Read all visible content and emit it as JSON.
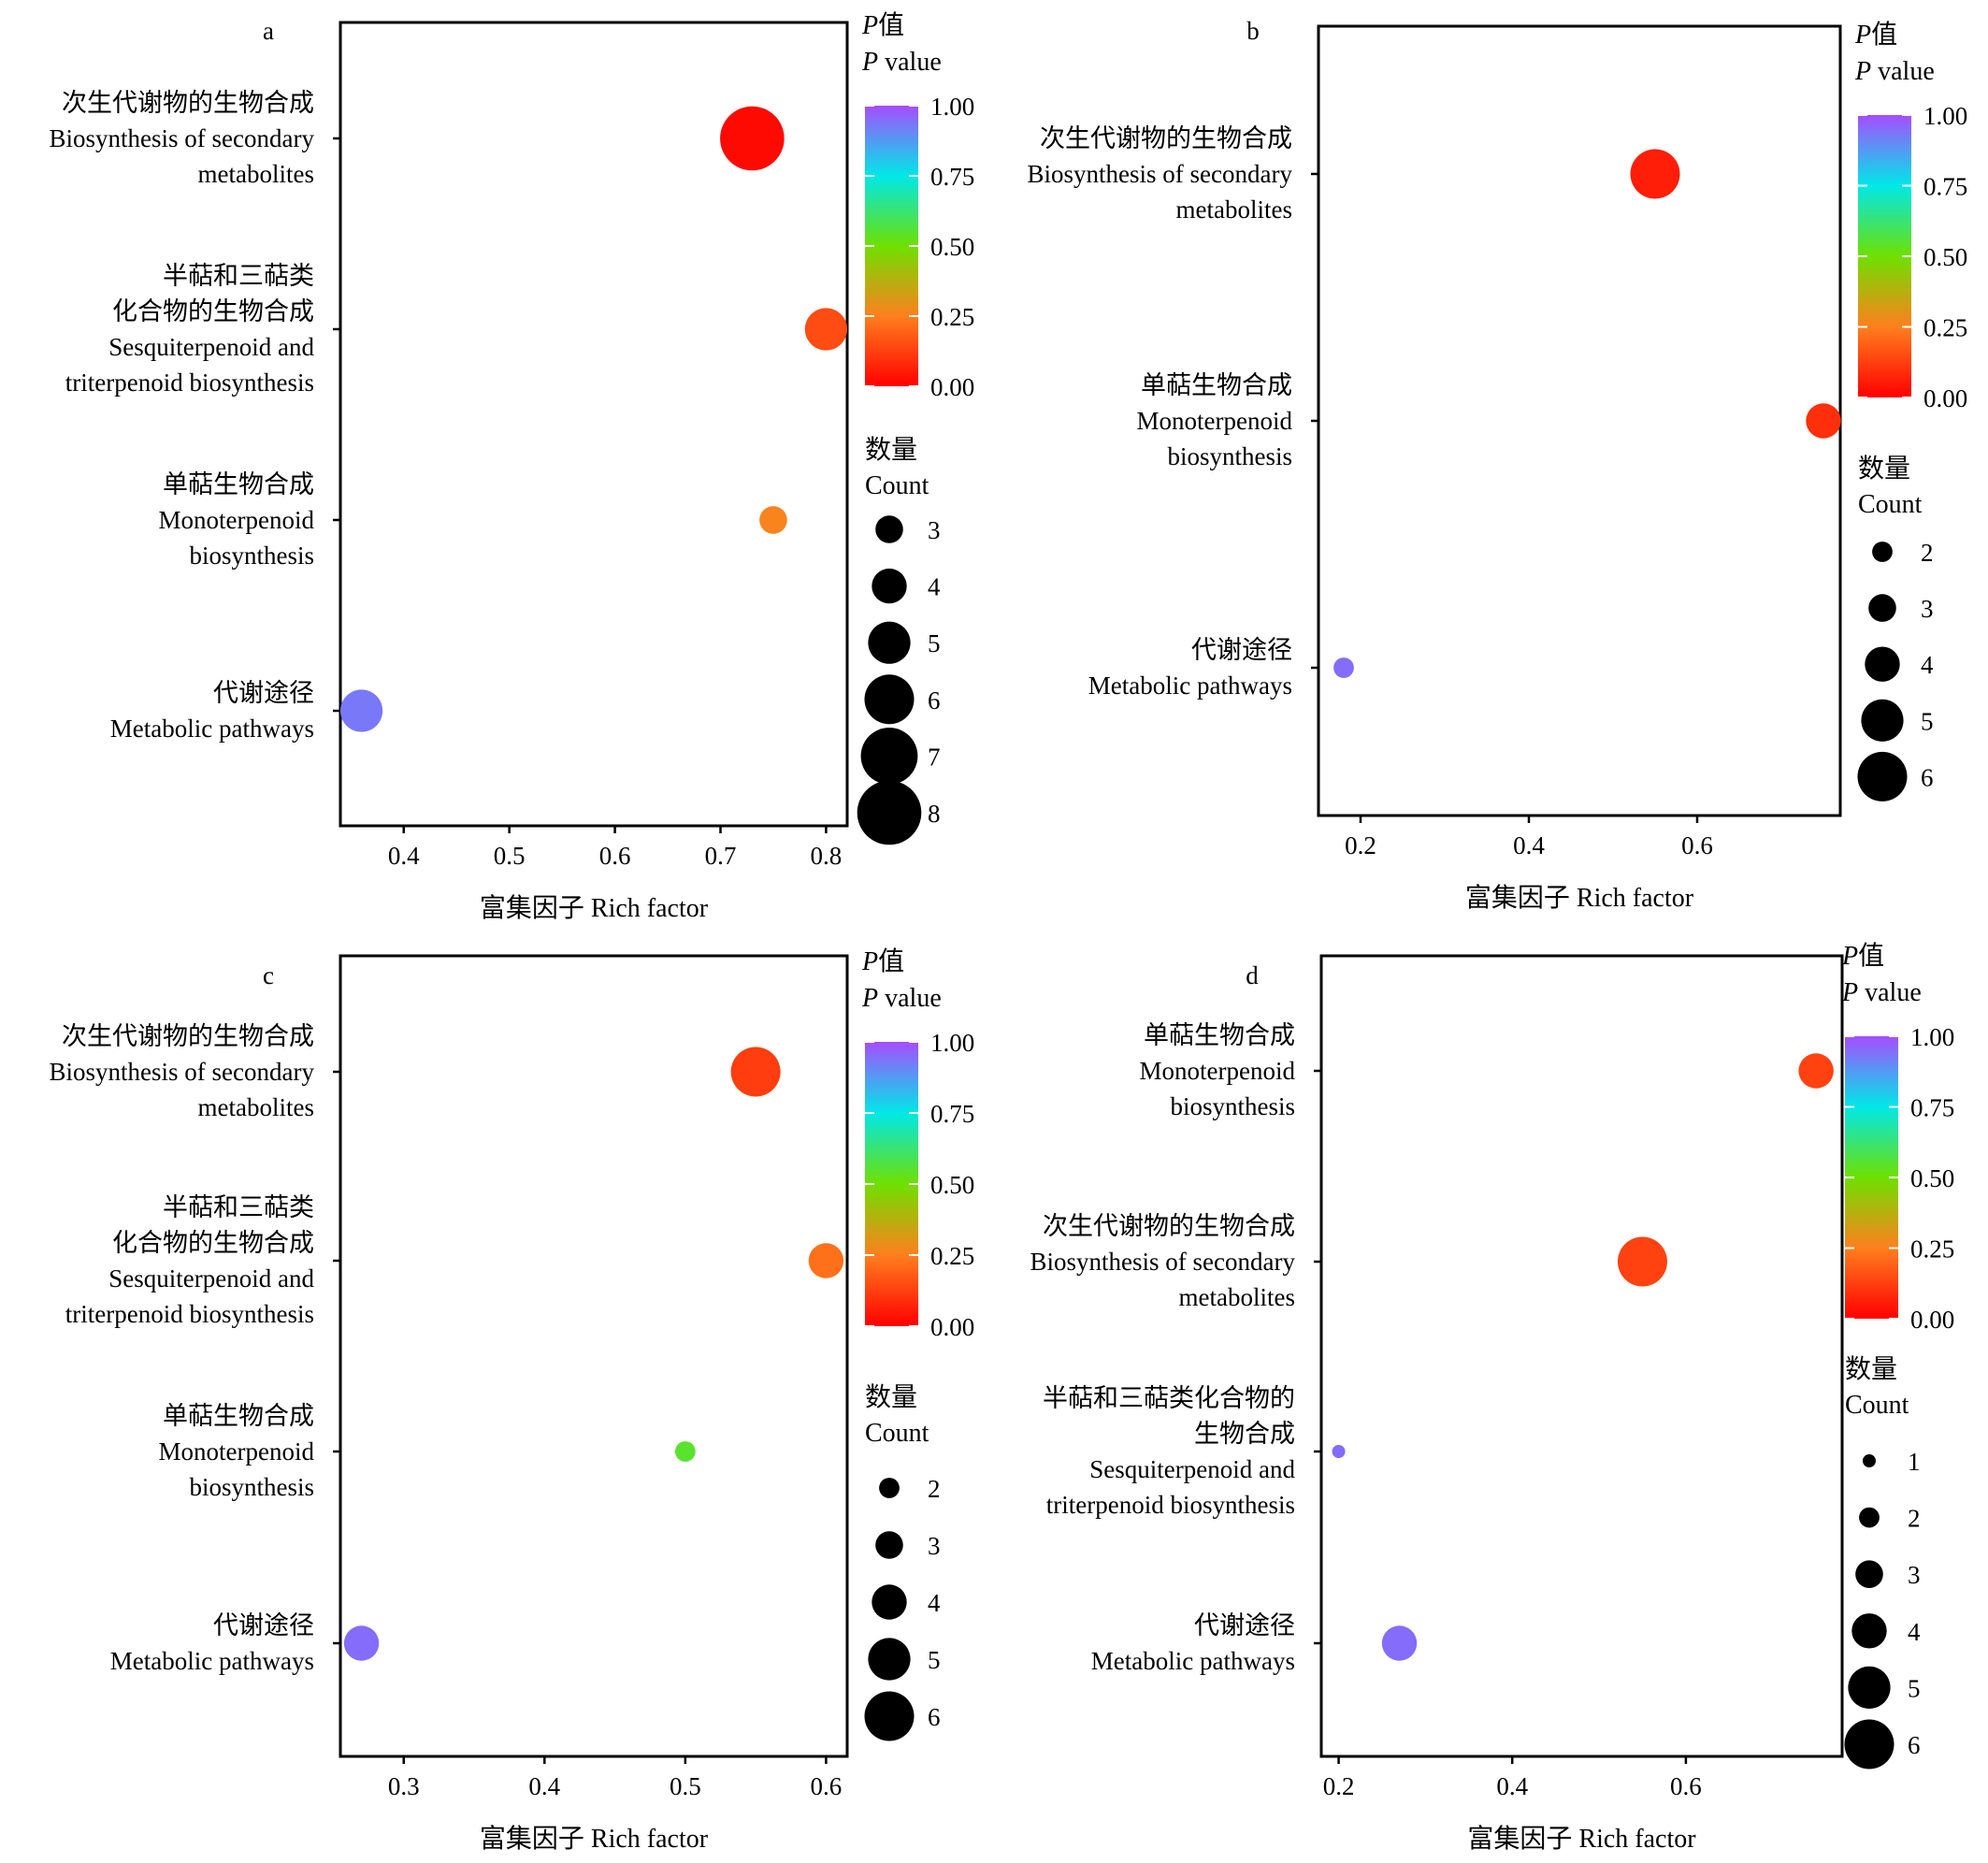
{
  "chart_data": [
    {
      "panel": "a",
      "type": "scatter",
      "xlabel": "富集因子 Rich factor",
      "xlim": [
        0.34,
        0.82
      ],
      "xticks": [
        "0.4",
        "0.5",
        "0.6",
        "0.7",
        "0.8"
      ],
      "yticks": [
        [
          "次生代谢物的生物合成",
          "Biosynthesis of secondary",
          "metabolites"
        ],
        [
          "半萜和三萜类",
          "化合物的生物合成",
          "Sesquiterpenoid and",
          "triterpenoid biosynthesis"
        ],
        [
          "单萜生物合成",
          "Monoterpenoid",
          "biosynthesis"
        ],
        [
          "代谢途径",
          "Metabolic pathways"
        ]
      ],
      "points": [
        {
          "row": 0,
          "x": 0.73,
          "count": 8,
          "p": 0.02
        },
        {
          "row": 1,
          "x": 0.8,
          "count": 5,
          "p": 0.15
        },
        {
          "row": 2,
          "x": 0.75,
          "count": 3,
          "p": 0.26
        },
        {
          "row": 3,
          "x": 0.36,
          "count": 5,
          "p": 0.93
        }
      ],
      "color_legend": {
        "title_cn": "P值",
        "title_en": "P value",
        "ticks": [
          "1.00",
          "0.75",
          "0.50",
          "0.25",
          "0.00"
        ]
      },
      "size_legend": {
        "title_cn": "数量",
        "title_en": "Count",
        "values": [
          "3",
          "4",
          "5",
          "6",
          "7",
          "8"
        ]
      }
    },
    {
      "panel": "b",
      "type": "scatter",
      "xlabel": "富集因子 Rich factor",
      "xlim": [
        0.15,
        0.77
      ],
      "xticks": [
        "0.2",
        "0.4",
        "0.6"
      ],
      "yticks": [
        [
          "次生代谢物的生物合成",
          "Biosynthesis of secondary",
          "metabolites"
        ],
        [
          "单萜生物合成",
          "Monoterpenoid",
          "biosynthesis"
        ],
        [
          "代谢途径",
          "Metabolic pathways"
        ]
      ],
      "points": [
        {
          "row": 0,
          "x": 0.55,
          "count": 6,
          "p": 0.06
        },
        {
          "row": 1,
          "x": 0.75,
          "count": 4,
          "p": 0.09
        },
        {
          "row": 2,
          "x": 0.18,
          "count": 2,
          "p": 0.95
        }
      ],
      "color_legend": {
        "title_cn": "P值",
        "title_en": "P value",
        "ticks": [
          "1.00",
          "0.75",
          "0.50",
          "0.25",
          "0.00"
        ]
      },
      "size_legend": {
        "title_cn": "数量",
        "title_en": "Count",
        "values": [
          "2",
          "3",
          "4",
          "5",
          "6"
        ]
      }
    },
    {
      "panel": "c",
      "type": "scatter",
      "xlabel": "富集因子 Rich factor",
      "xlim": [
        0.255,
        0.615
      ],
      "xticks": [
        "0.3",
        "0.4",
        "0.5",
        "0.6"
      ],
      "yticks": [
        [
          "次生代谢物的生物合成",
          "Biosynthesis of secondary",
          "metabolites"
        ],
        [
          "半萜和三萜类",
          "化合物的生物合成",
          "Sesquiterpenoid and",
          "triterpenoid biosynthesis"
        ],
        [
          "单萜生物合成",
          "Monoterpenoid",
          "biosynthesis"
        ],
        [
          "代谢途径",
          "Metabolic pathways"
        ]
      ],
      "points": [
        {
          "row": 0,
          "x": 0.55,
          "count": 6,
          "p": 0.12
        },
        {
          "row": 1,
          "x": 0.6,
          "count": 4,
          "p": 0.22
        },
        {
          "row": 2,
          "x": 0.5,
          "count": 2,
          "p": 0.55
        },
        {
          "row": 3,
          "x": 0.27,
          "count": 4,
          "p": 0.95
        }
      ],
      "color_legend": {
        "title_cn": "P值",
        "title_en": "P value",
        "ticks": [
          "1.00",
          "0.75",
          "0.50",
          "0.25",
          "0.00"
        ]
      },
      "size_legend": {
        "title_cn": "数量",
        "title_en": "Count",
        "values": [
          "2",
          "3",
          "4",
          "5",
          "6"
        ]
      }
    },
    {
      "panel": "d",
      "type": "scatter",
      "xlabel": "富集因子 Rich factor",
      "xlim": [
        0.18,
        0.78
      ],
      "xticks": [
        "0.2",
        "0.4",
        "0.6"
      ],
      "yticks": [
        [
          "单萜生物合成",
          "Monoterpenoid",
          "biosynthesis"
        ],
        [
          "次生代谢物的生物合成",
          "Biosynthesis of secondary",
          "metabolites"
        ],
        [
          "半萜和三萜类化合物的",
          "生物合成",
          "Sesquiterpenoid and",
          "triterpenoid biosynthesis"
        ],
        [
          "代谢途径",
          "Metabolic pathways"
        ]
      ],
      "points": [
        {
          "row": 0,
          "x": 0.75,
          "count": 4,
          "p": 0.13
        },
        {
          "row": 1,
          "x": 0.55,
          "count": 6,
          "p": 0.13
        },
        {
          "row": 2,
          "x": 0.2,
          "count": 1,
          "p": 0.95
        },
        {
          "row": 3,
          "x": 0.27,
          "count": 4,
          "p": 0.95
        }
      ],
      "color_legend": {
        "title_cn": "P值",
        "title_en": "P value",
        "ticks": [
          "1.00",
          "0.75",
          "0.50",
          "0.25",
          "0.00"
        ]
      },
      "size_legend": {
        "title_cn": "数量",
        "title_en": "Count",
        "values": [
          "1",
          "2",
          "3",
          "4",
          "5",
          "6"
        ]
      }
    }
  ]
}
